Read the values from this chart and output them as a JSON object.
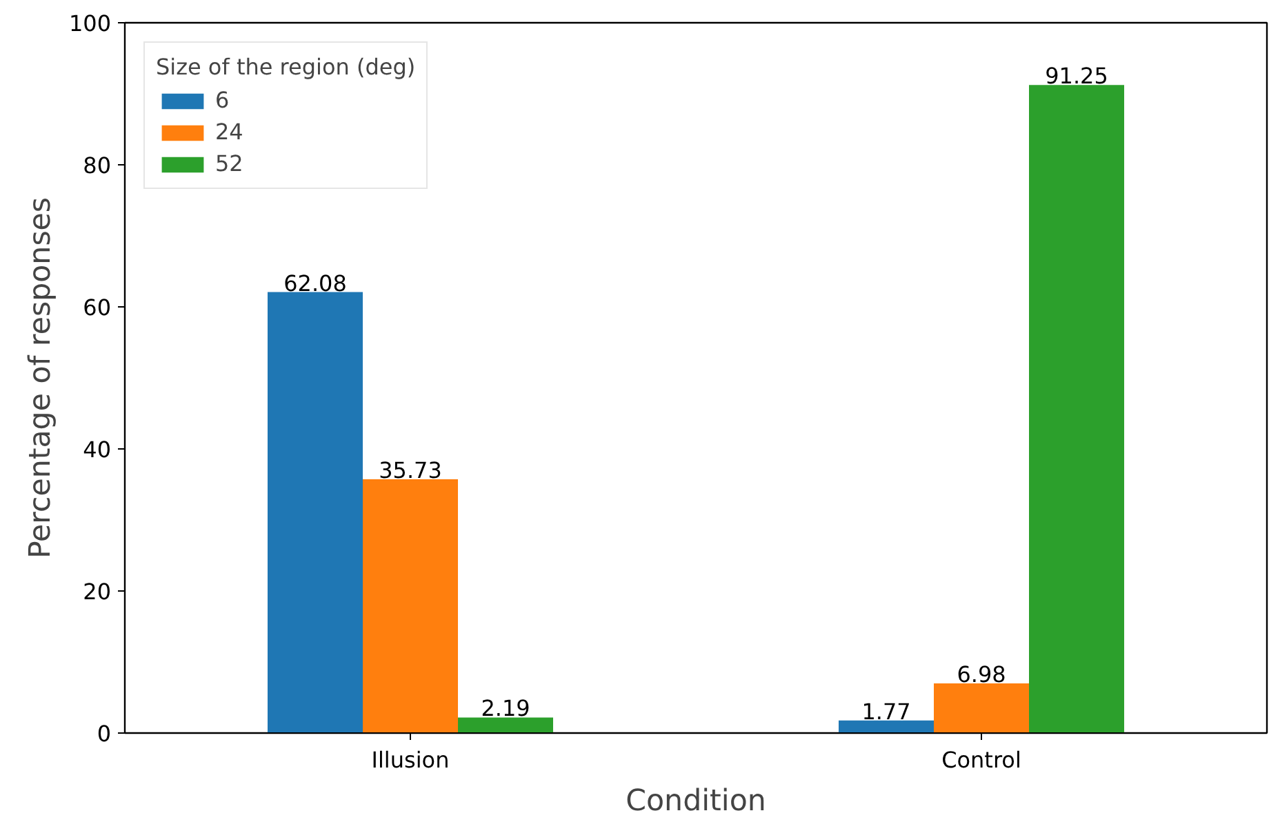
{
  "chart_data": {
    "type": "bar",
    "xlabel": "Condition",
    "ylabel": "Percentage of responses",
    "legend_title": "Size of the region (deg)",
    "categories": [
      "Illusion",
      "Control"
    ],
    "series": [
      {
        "name": "6",
        "color": "#1f77b4",
        "values": [
          62.08,
          1.77
        ]
      },
      {
        "name": "24",
        "color": "#ff7f0e",
        "values": [
          35.73,
          6.98
        ]
      },
      {
        "name": "52",
        "color": "#2ca02c",
        "values": [
          2.19,
          91.25
        ]
      }
    ],
    "ylim": [
      0,
      100
    ],
    "yticks": [
      0,
      20,
      40,
      60,
      80,
      100
    ],
    "grid": false,
    "legend": "top left",
    "data_labels": true
  }
}
